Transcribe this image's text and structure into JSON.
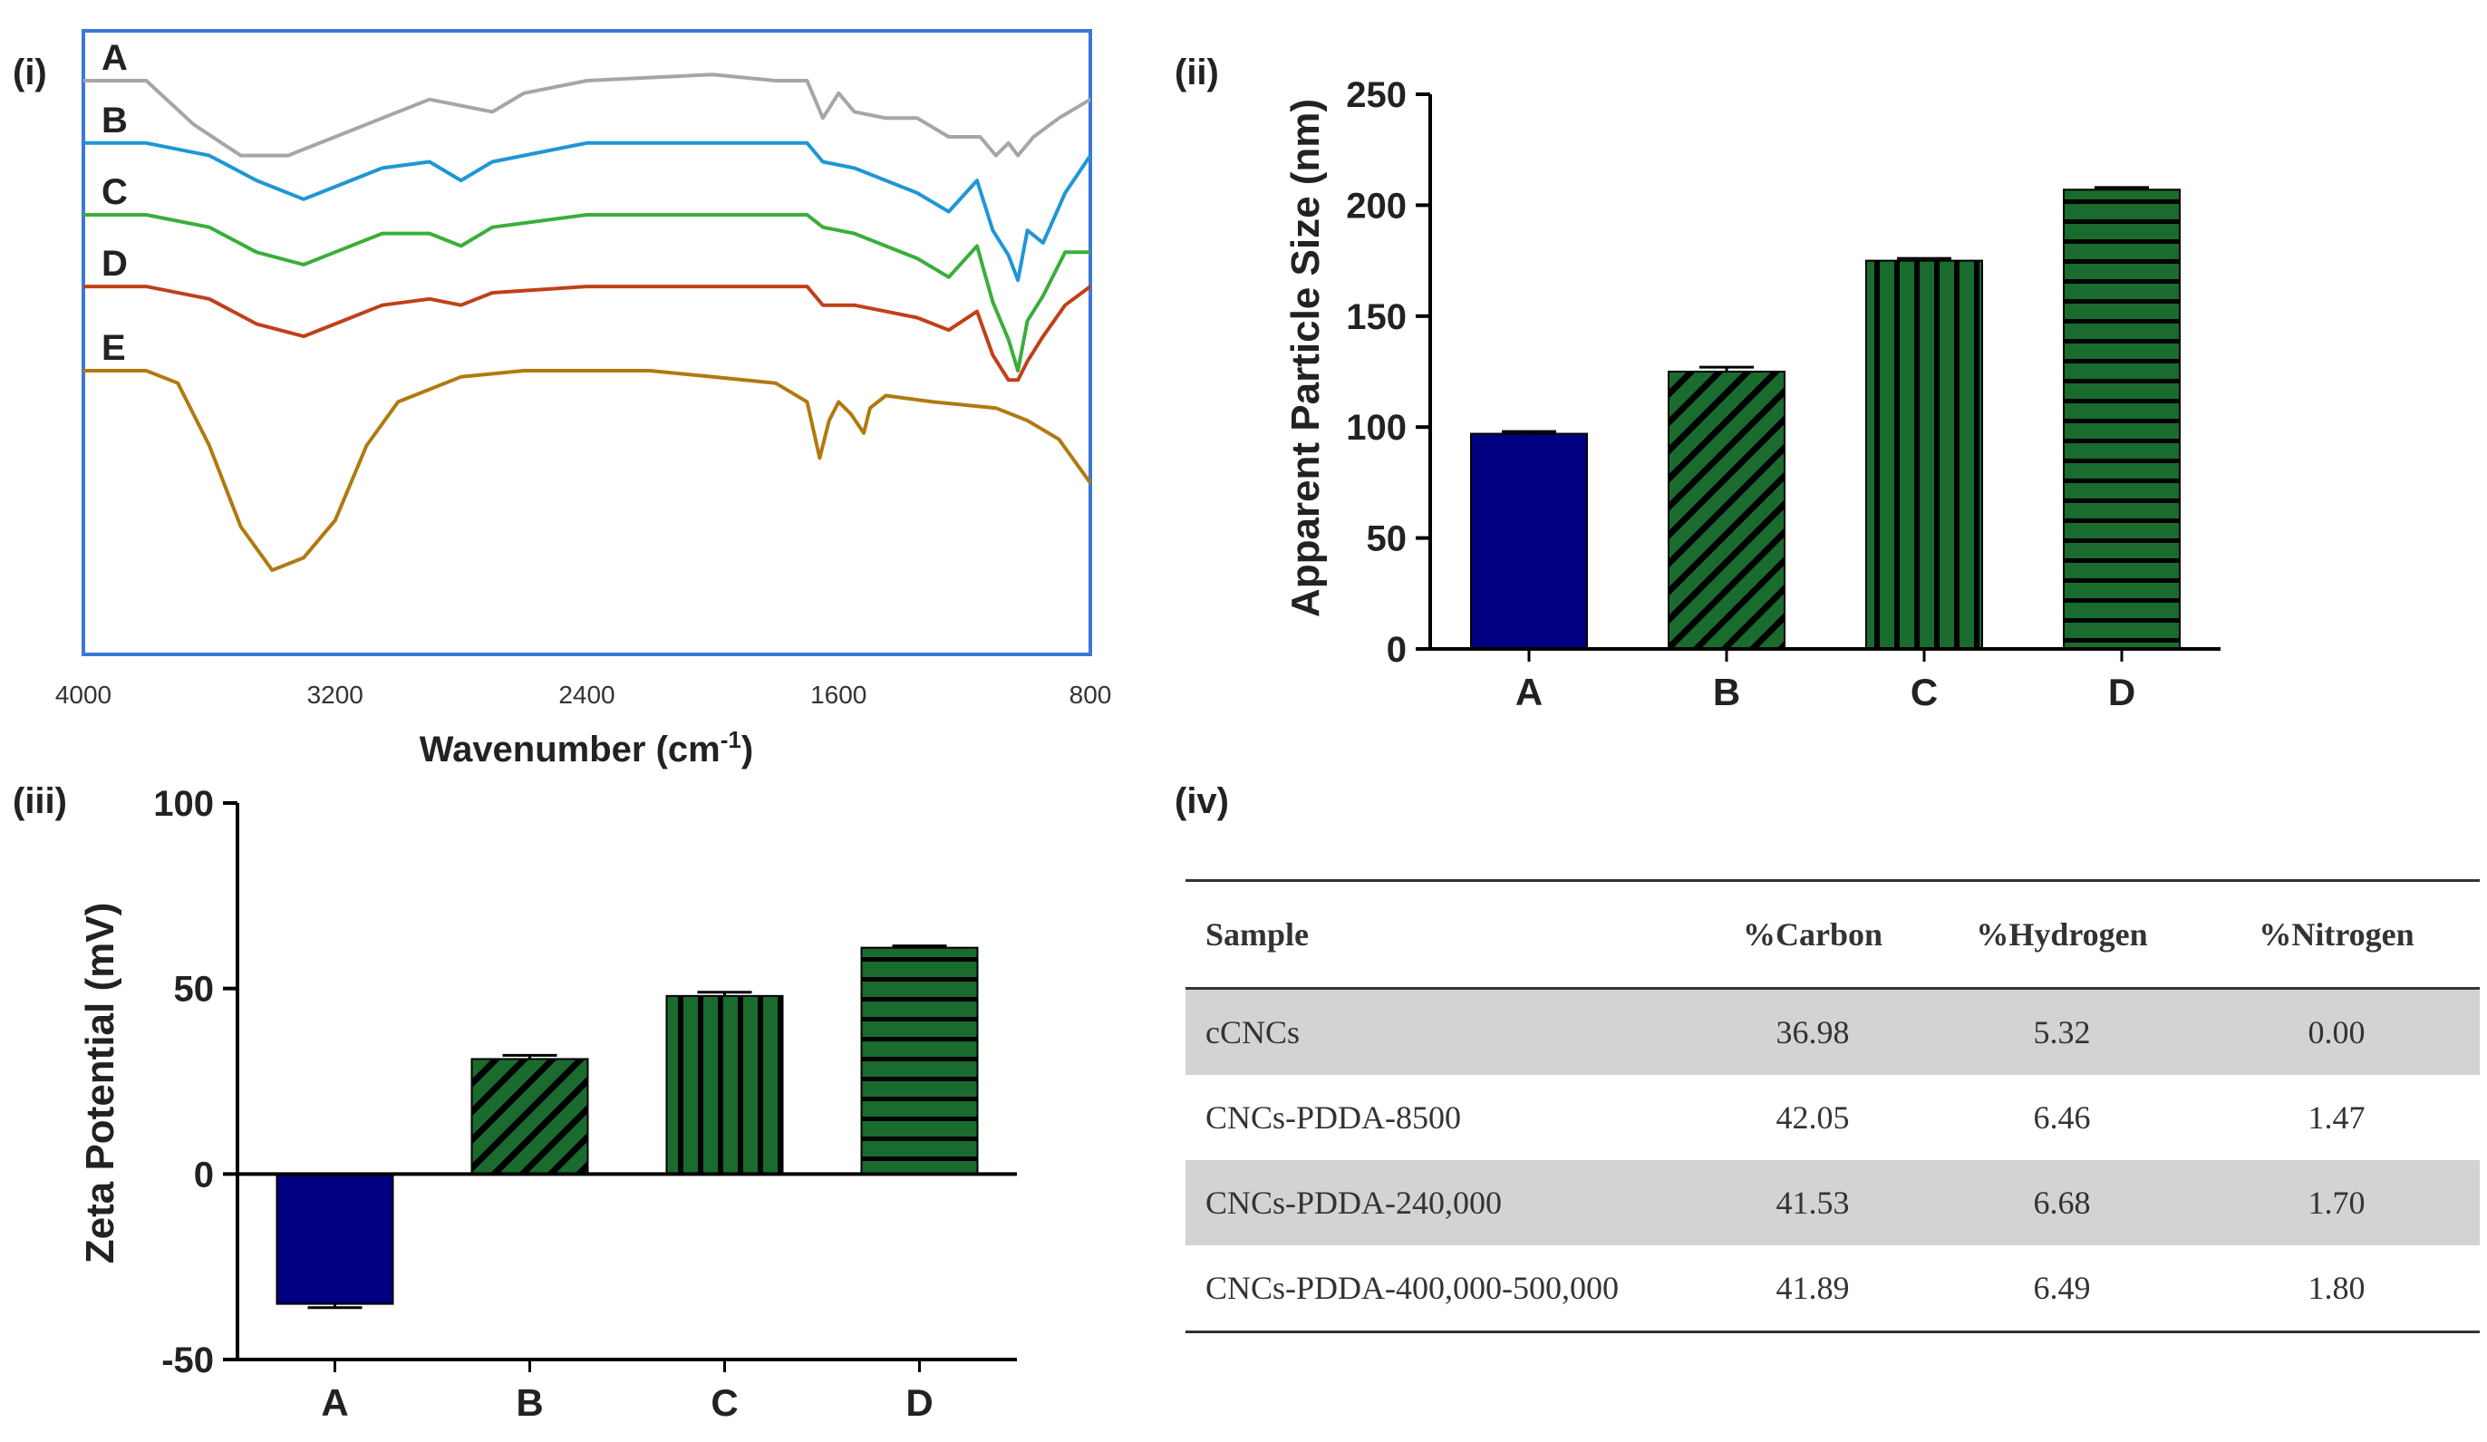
{
  "panels": {
    "i": "(i)",
    "ii": "(ii)",
    "iii": "(iii)",
    "iv": "(iv)"
  },
  "chart_data": [
    {
      "id": "ftir",
      "type": "line",
      "xlabel": "Wavenumber (cm",
      "xlabel_sup": "-1",
      "xlabel_close": ")",
      "xlim": [
        4000,
        800
      ],
      "xticks": [
        "4000",
        "3200",
        "2400",
        "1600",
        "800"
      ],
      "series": [
        {
          "name": "A",
          "color": "#a6a6a6",
          "offset": 0.08,
          "points": [
            [
              4000,
              0.0
            ],
            [
              3800,
              0.0
            ],
            [
              3650,
              0.07
            ],
            [
              3500,
              0.12
            ],
            [
              3350,
              0.12
            ],
            [
              3200,
              0.09
            ],
            [
              3050,
              0.06
            ],
            [
              2900,
              0.03
            ],
            [
              2700,
              0.05
            ],
            [
              2600,
              0.02
            ],
            [
              2400,
              0.0
            ],
            [
              2000,
              -0.01
            ],
            [
              1800,
              0.0
            ],
            [
              1700,
              0.0
            ],
            [
              1650,
              0.06
            ],
            [
              1600,
              0.02
            ],
            [
              1550,
              0.05
            ],
            [
              1450,
              0.06
            ],
            [
              1350,
              0.06
            ],
            [
              1250,
              0.09
            ],
            [
              1150,
              0.09
            ],
            [
              1100,
              0.12
            ],
            [
              1060,
              0.1
            ],
            [
              1030,
              0.12
            ],
            [
              980,
              0.09
            ],
            [
              900,
              0.06
            ],
            [
              800,
              0.03
            ]
          ]
        },
        {
          "name": "B",
          "color": "#1f96d6",
          "offset": 0.18,
          "points": [
            [
              4000,
              0.0
            ],
            [
              3800,
              0.0
            ],
            [
              3600,
              0.02
            ],
            [
              3450,
              0.06
            ],
            [
              3300,
              0.09
            ],
            [
              3200,
              0.07
            ],
            [
              3050,
              0.04
            ],
            [
              2900,
              0.03
            ],
            [
              2800,
              0.06
            ],
            [
              2700,
              0.03
            ],
            [
              2400,
              0.0
            ],
            [
              1700,
              0.0
            ],
            [
              1650,
              0.03
            ],
            [
              1550,
              0.04
            ],
            [
              1450,
              0.06
            ],
            [
              1350,
              0.08
            ],
            [
              1250,
              0.11
            ],
            [
              1160,
              0.06
            ],
            [
              1110,
              0.14
            ],
            [
              1060,
              0.18
            ],
            [
              1030,
              0.22
            ],
            [
              1000,
              0.14
            ],
            [
              950,
              0.16
            ],
            [
              880,
              0.08
            ],
            [
              800,
              0.02
            ]
          ]
        },
        {
          "name": "C",
          "color": "#3aae3a",
          "offset": 0.295,
          "points": [
            [
              4000,
              0.0
            ],
            [
              3800,
              0.0
            ],
            [
              3600,
              0.02
            ],
            [
              3450,
              0.06
            ],
            [
              3300,
              0.08
            ],
            [
              3200,
              0.06
            ],
            [
              3050,
              0.03
            ],
            [
              2900,
              0.03
            ],
            [
              2800,
              0.05
            ],
            [
              2700,
              0.02
            ],
            [
              2400,
              0.0
            ],
            [
              1700,
              0.0
            ],
            [
              1650,
              0.02
            ],
            [
              1550,
              0.03
            ],
            [
              1450,
              0.05
            ],
            [
              1350,
              0.07
            ],
            [
              1250,
              0.1
            ],
            [
              1160,
              0.05
            ],
            [
              1110,
              0.14
            ],
            [
              1060,
              0.2
            ],
            [
              1030,
              0.25
            ],
            [
              1000,
              0.17
            ],
            [
              950,
              0.13
            ],
            [
              880,
              0.06
            ],
            [
              800,
              0.06
            ]
          ]
        },
        {
          "name": "D",
          "color": "#c0401a",
          "offset": 0.41,
          "points": [
            [
              4000,
              0.0
            ],
            [
              3800,
              0.0
            ],
            [
              3600,
              0.02
            ],
            [
              3450,
              0.06
            ],
            [
              3300,
              0.08
            ],
            [
              3200,
              0.06
            ],
            [
              3050,
              0.03
            ],
            [
              2900,
              0.02
            ],
            [
              2800,
              0.03
            ],
            [
              2700,
              0.01
            ],
            [
              2400,
              0.0
            ],
            [
              1700,
              0.0
            ],
            [
              1650,
              0.03
            ],
            [
              1550,
              0.03
            ],
            [
              1450,
              0.04
            ],
            [
              1350,
              0.05
            ],
            [
              1250,
              0.07
            ],
            [
              1160,
              0.04
            ],
            [
              1110,
              0.11
            ],
            [
              1060,
              0.15
            ],
            [
              1030,
              0.15
            ],
            [
              1000,
              0.12
            ],
            [
              950,
              0.08
            ],
            [
              880,
              0.03
            ],
            [
              800,
              0.0
            ]
          ]
        },
        {
          "name": "E",
          "color": "#b07a10",
          "offset": 0.545,
          "points": [
            [
              4000,
              0.0
            ],
            [
              3800,
              0.0
            ],
            [
              3700,
              0.02
            ],
            [
              3600,
              0.12
            ],
            [
              3500,
              0.25
            ],
            [
              3400,
              0.32
            ],
            [
              3300,
              0.3
            ],
            [
              3200,
              0.24
            ],
            [
              3100,
              0.12
            ],
            [
              3000,
              0.05
            ],
            [
              2900,
              0.03
            ],
            [
              2800,
              0.01
            ],
            [
              2600,
              0.0
            ],
            [
              2400,
              0.0
            ],
            [
              2200,
              0.0
            ],
            [
              2000,
              0.01
            ],
            [
              1800,
              0.02
            ],
            [
              1700,
              0.05
            ],
            [
              1660,
              0.14
            ],
            [
              1630,
              0.08
            ],
            [
              1600,
              0.05
            ],
            [
              1560,
              0.07
            ],
            [
              1520,
              0.1
            ],
            [
              1500,
              0.06
            ],
            [
              1450,
              0.04
            ],
            [
              1300,
              0.05
            ],
            [
              1100,
              0.06
            ],
            [
              1000,
              0.08
            ],
            [
              900,
              0.11
            ],
            [
              800,
              0.18
            ]
          ]
        }
      ]
    },
    {
      "id": "particle-size",
      "type": "bar",
      "ylabel": "Apparent Particle Size (nm)",
      "ylim": [
        0,
        250
      ],
      "yticks": [
        "0",
        "50",
        "100",
        "150",
        "200",
        "250"
      ],
      "categories": [
        "A",
        "B",
        "C",
        "D"
      ],
      "values": [
        97,
        125,
        175,
        207
      ],
      "errors": [
        1,
        2,
        1,
        1
      ],
      "patterns": [
        "solid",
        "diagonal",
        "vertical",
        "horizontal"
      ],
      "colors": {
        "A": "#000080",
        "fill": "#1a6b2e"
      }
    },
    {
      "id": "zeta",
      "type": "bar",
      "ylabel": "Zeta Potential  (mV)",
      "ylim": [
        -50,
        100
      ],
      "yticks": [
        "-50",
        "0",
        "50",
        "100"
      ],
      "categories": [
        "A",
        "B",
        "C",
        "D"
      ],
      "values": [
        -35,
        31,
        48,
        61
      ],
      "errors": [
        1,
        1,
        1,
        0.5
      ],
      "patterns": [
        "solid",
        "diagonal",
        "vertical",
        "horizontal"
      ],
      "colors": {
        "A": "#000080",
        "fill": "#1a6b2e"
      }
    }
  ],
  "table": {
    "headers": [
      "Sample",
      "%Carbon",
      "%Hydrogen",
      "%Nitrogen"
    ],
    "rows": [
      [
        "cCNCs",
        "36.98",
        "5.32",
        "0.00"
      ],
      [
        "CNCs-PDDA-8500",
        "42.05",
        "6.46",
        "1.47"
      ],
      [
        "CNCs-PDDA-240,000",
        "41.53",
        "6.68",
        "1.70"
      ],
      [
        "CNCs-PDDA-400,000-500,000",
        "41.89",
        "6.49",
        "1.80"
      ]
    ]
  }
}
